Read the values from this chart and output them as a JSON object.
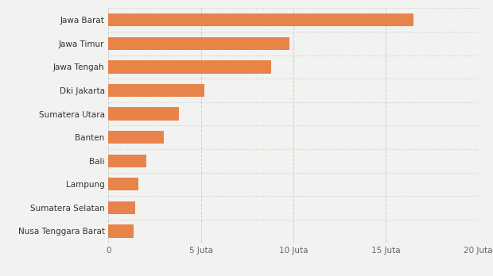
{
  "categories": [
    "Nusa Tenggara Barat",
    "Sumatera Selatan",
    "Lampung",
    "Bali",
    "Banten",
    "Sumatera Utara",
    "Dki Jakarta",
    "Jawa Tengah",
    "Jawa Timur",
    "Jawa Barat"
  ],
  "values": [
    1.38,
    1.45,
    1.6,
    2.05,
    3.0,
    3.8,
    5.2,
    8.8,
    9.8,
    16.5
  ],
  "bar_color": "#E8834A",
  "background_color": "#F2F2F0",
  "xlim": [
    0,
    20
  ],
  "xticks": [
    0,
    5,
    10,
    15,
    20
  ],
  "xtick_labels": [
    "0",
    "5 Juta",
    "10 Juta",
    "15 Juta",
    "20 Juta"
  ],
  "grid_color": "#CCCCCC",
  "label_fontsize": 7.5,
  "tick_fontsize": 7.5,
  "bar_height": 0.55
}
